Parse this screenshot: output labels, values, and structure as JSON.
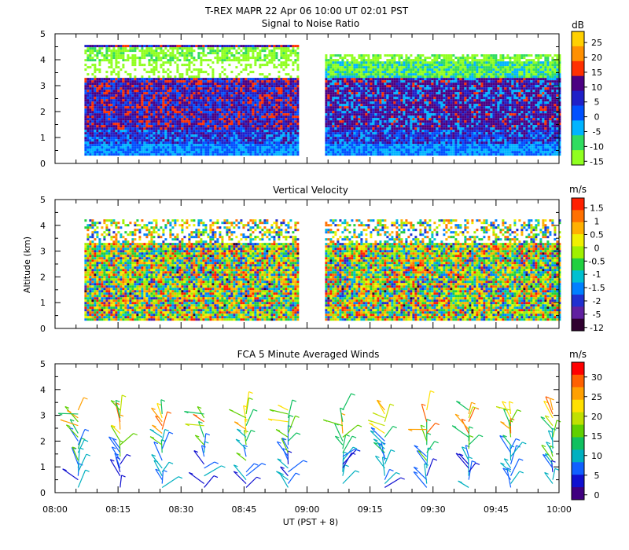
{
  "header": {
    "title": "T-REX  MAPR 22 Apr 06  10:00 UT  02:01  PST"
  },
  "chart_data": [
    {
      "type": "heatmap",
      "title": "Signal to Noise Ratio",
      "ylabel": "",
      "unit": "dB",
      "ylim": [
        0,
        5
      ],
      "yticks": [
        "0",
        "1",
        "2",
        "3",
        "4",
        "5"
      ],
      "colorbar_labels": [
        "25",
        "20",
        "15",
        "10",
        "5",
        "0",
        "-5",
        "-10",
        "-15"
      ],
      "colorbar_colors": [
        "#ffd000",
        "#ff9000",
        "#ff3000",
        "#4b0082",
        "#2020c8",
        "#0050ff",
        "#00b4ff",
        "#30dc60",
        "#90ff20"
      ],
      "data_gap_minutes": [
        58,
        64
      ],
      "data_range_minutes": [
        7,
        120
      ],
      "data_altitude_km": [
        0.3,
        4.5
      ]
    },
    {
      "type": "heatmap",
      "title": "Vertical Velocity",
      "ylabel": "Altitude (km)",
      "unit": "m/s",
      "ylim": [
        0,
        5
      ],
      "yticks": [
        "0",
        "1",
        "2",
        "3",
        "4",
        "5"
      ],
      "colorbar_labels": [
        "1.5",
        "1",
        "0.5",
        "0",
        "-0.5",
        "-1",
        "-1.5",
        "-2",
        "-5",
        "-12"
      ],
      "colorbar_colors": [
        "#ff2000",
        "#ff7000",
        "#ffb000",
        "#f0f000",
        "#a0f000",
        "#20d040",
        "#00c0d0",
        "#0080ff",
        "#2030d0",
        "#6020a0",
        "#300030"
      ],
      "data_gap_minutes": [
        58,
        64
      ],
      "data_range_minutes": [
        7,
        120
      ],
      "data_altitude_km": [
        0.3,
        4.2
      ]
    },
    {
      "type": "scatter",
      "title": "FCA 5 Minute Averaged Winds",
      "ylabel": "",
      "unit": "m/s",
      "ylim": [
        0,
        5
      ],
      "yticks": [
        "0",
        "1",
        "2",
        "3",
        "4",
        "5"
      ],
      "colorbar_labels": [
        "30",
        "25",
        "20",
        "15",
        "10",
        "5",
        "0"
      ],
      "colorbar_colors": [
        "#ff0000",
        "#ff6000",
        "#ffa000",
        "#ffe000",
        "#c0e000",
        "#60d000",
        "#10c060",
        "#00b0c0",
        "#1060ff",
        "#1010d0",
        "#400080"
      ],
      "profile_times_minutes": [
        10,
        20,
        30,
        40,
        50,
        60,
        70,
        80,
        90,
        100,
        110,
        120
      ],
      "profile_times_minutes_full": [
        5.5,
        15.5,
        25.5,
        35.5,
        45.5,
        55.5,
        68.5,
        78.5,
        88.5,
        98.5,
        108.5,
        118.5
      ],
      "data_gap_minutes": [
        58,
        64
      ]
    }
  ],
  "xaxis": {
    "range_minutes": [
      0,
      120
    ],
    "tick_labels": [
      "08:00",
      "08:15",
      "08:30",
      "08:45",
      "09:00",
      "09:15",
      "09:30",
      "09:45",
      "10:00"
    ],
    "xlabel": "UT  (PST + 8)"
  }
}
